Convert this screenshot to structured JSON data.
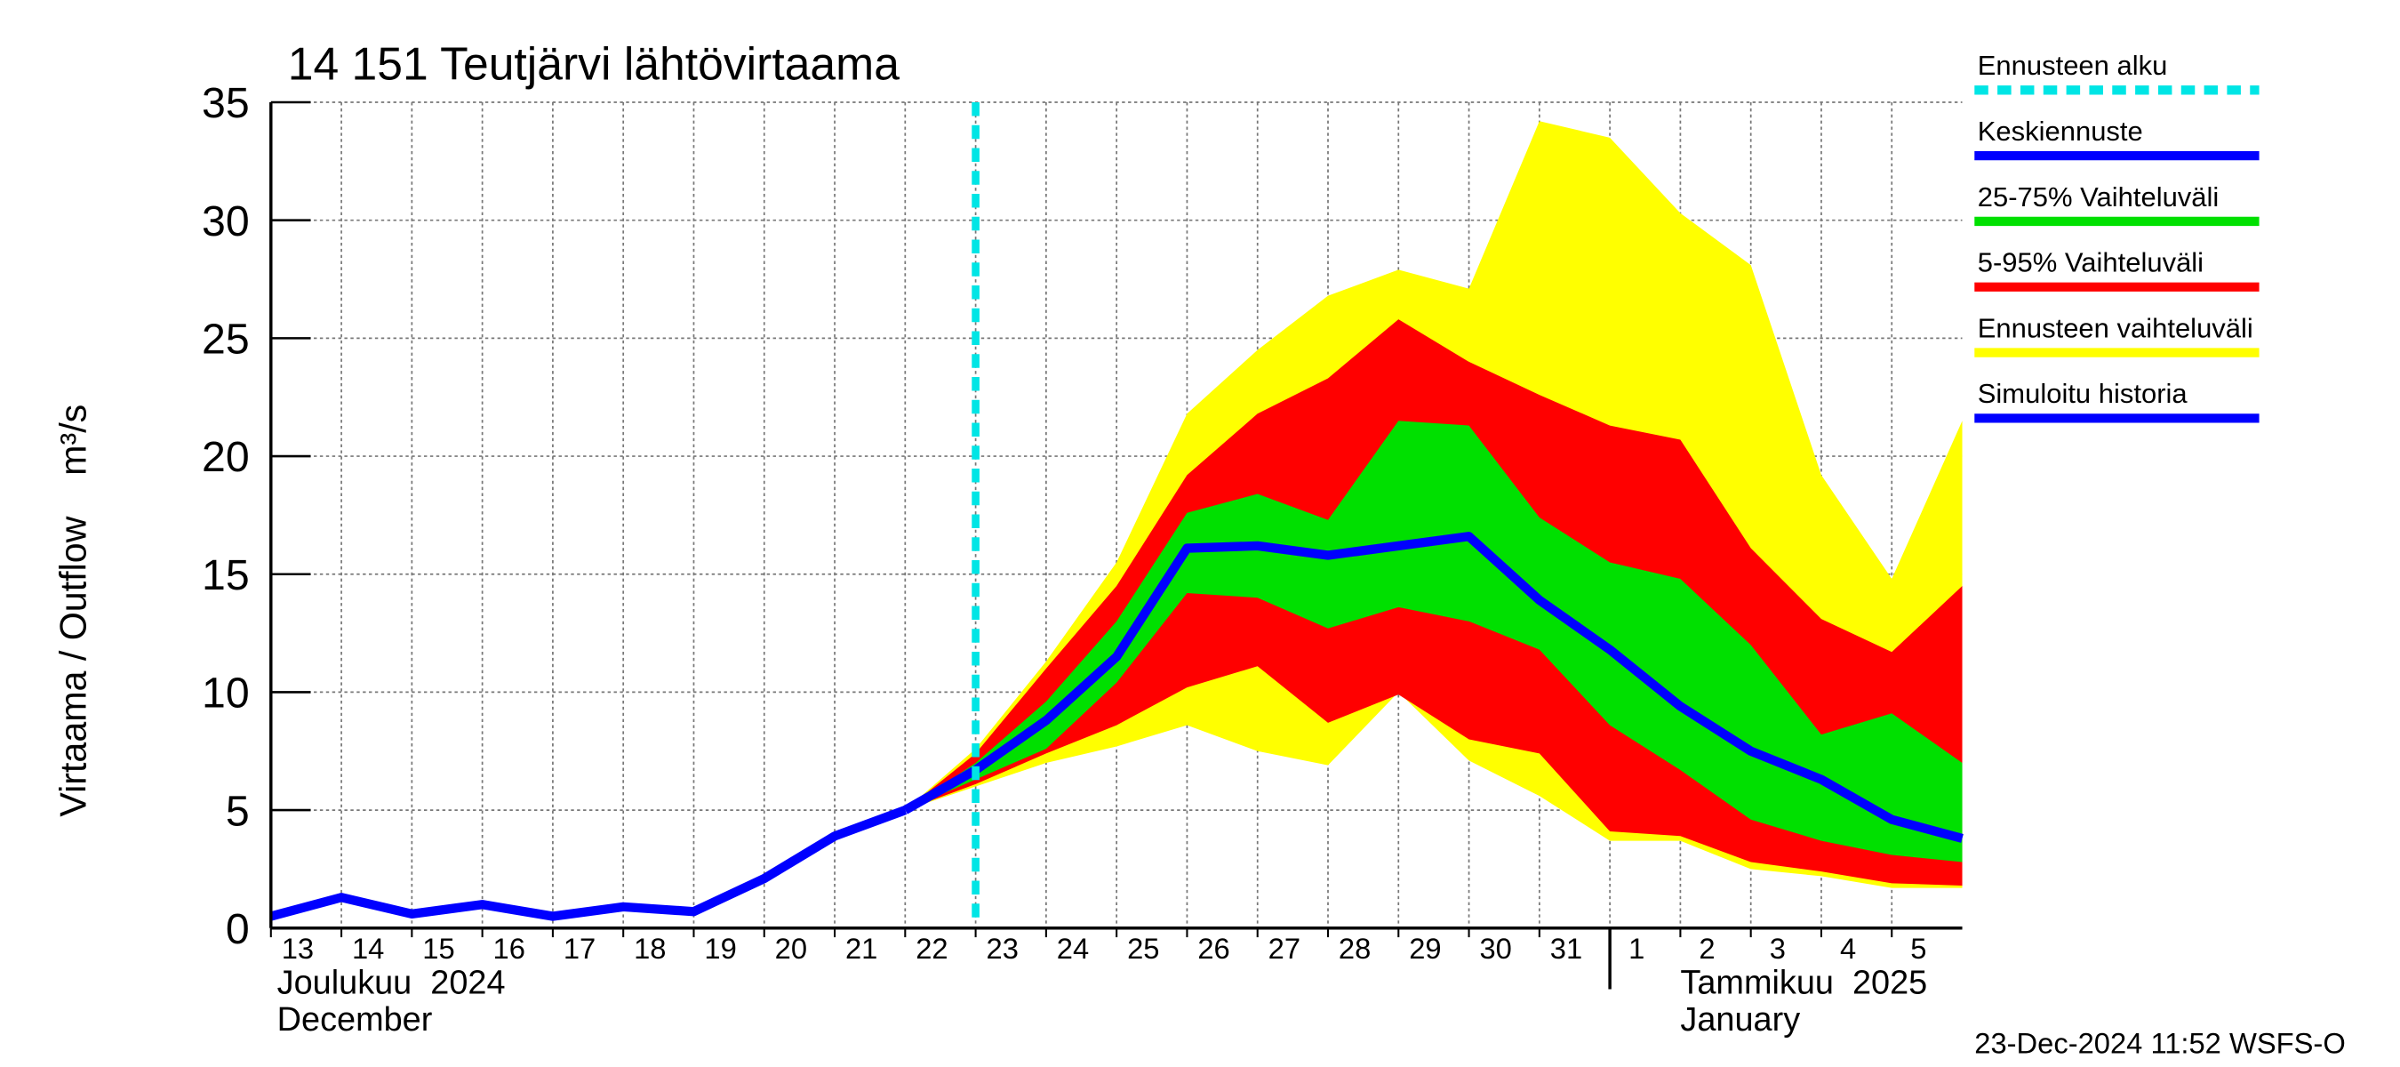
{
  "chart_data": {
    "type": "band-forecast",
    "title": "14 151 Teutjärvi lähtövirtaama",
    "y_label": "Virtaama / Outflow    m³/s",
    "x": [
      "2024-12-13",
      "2024-12-14",
      "2024-12-15",
      "2024-12-16",
      "2024-12-17",
      "2024-12-18",
      "2024-12-19",
      "2024-12-20",
      "2024-12-21",
      "2024-12-22",
      "2024-12-23",
      "2024-12-24",
      "2024-12-25",
      "2024-12-26",
      "2024-12-27",
      "2024-12-28",
      "2024-12-29",
      "2024-12-30",
      "2024-12-31",
      "2025-01-01",
      "2025-01-02",
      "2025-01-03",
      "2025-01-04",
      "2025-01-05",
      "2025-01-06"
    ],
    "xlim": [
      "2024-12-13",
      "2025-01-06"
    ],
    "xticks": [
      {
        "value": "2024-12-13",
        "label": "13"
      },
      {
        "value": "2024-12-14",
        "label": "14"
      },
      {
        "value": "2024-12-15",
        "label": "15"
      },
      {
        "value": "2024-12-16",
        "label": "16"
      },
      {
        "value": "2024-12-17",
        "label": "17"
      },
      {
        "value": "2024-12-18",
        "label": "18"
      },
      {
        "value": "2024-12-19",
        "label": "19"
      },
      {
        "value": "2024-12-20",
        "label": "20"
      },
      {
        "value": "2024-12-21",
        "label": "21"
      },
      {
        "value": "2024-12-22",
        "label": "22"
      },
      {
        "value": "2024-12-23",
        "label": "23"
      },
      {
        "value": "2024-12-24",
        "label": "24"
      },
      {
        "value": "2024-12-25",
        "label": "25"
      },
      {
        "value": "2024-12-26",
        "label": "26"
      },
      {
        "value": "2024-12-27",
        "label": "27"
      },
      {
        "value": "2024-12-28",
        "label": "28"
      },
      {
        "value": "2024-12-29",
        "label": "29"
      },
      {
        "value": "2024-12-30",
        "label": "30"
      },
      {
        "value": "2024-12-31",
        "label": "31"
      },
      {
        "value": "2025-01-01",
        "label": "1"
      },
      {
        "value": "2025-01-02",
        "label": "2"
      },
      {
        "value": "2025-01-03",
        "label": "3"
      },
      {
        "value": "2025-01-04",
        "label": "4"
      },
      {
        "value": "2025-01-05",
        "label": "5"
      }
    ],
    "month_labels": [
      {
        "value": "2024-12-13",
        "lines": [
          "Joulukuu  2024",
          "December"
        ]
      },
      {
        "value": "2025-01-01",
        "lines": [
          "Tammikuu  2025",
          "January"
        ]
      }
    ],
    "ylim": [
      0,
      35
    ],
    "yticks": [
      0,
      5,
      10,
      15,
      20,
      25,
      30,
      35
    ],
    "grid": true,
    "forecast_start": {
      "label": "Ennusteen alku",
      "x": "2024-12-23",
      "color": "#00e5e5"
    },
    "series": [
      {
        "name": "Keskiennuste",
        "color": "#0000ff",
        "values": [
          null,
          null,
          null,
          null,
          null,
          null,
          null,
          null,
          null,
          5.0,
          6.7,
          8.8,
          11.5,
          16.1,
          16.2,
          15.8,
          16.2,
          16.6,
          13.9,
          11.8,
          9.4,
          7.5,
          6.3,
          4.6,
          3.8
        ]
      },
      {
        "name": "Simuloitu historia",
        "color": "#0000ff",
        "values": [
          0.5,
          1.3,
          0.6,
          1.0,
          0.5,
          0.9,
          0.7,
          2.1,
          3.9,
          5.0,
          null,
          null,
          null,
          null,
          null,
          null,
          null,
          null,
          null,
          null,
          null,
          null,
          null,
          null,
          null
        ]
      }
    ],
    "bands": [
      {
        "name": "Ennusteen vaihteluväli",
        "color": "#ffff00",
        "lower": [
          null,
          null,
          null,
          null,
          null,
          null,
          null,
          null,
          null,
          5.0,
          6.0,
          7.0,
          7.7,
          8.6,
          7.5,
          6.9,
          10.0,
          7.1,
          5.6,
          3.7,
          3.7,
          2.5,
          2.2,
          1.7,
          1.7
        ],
        "upper": [
          null,
          null,
          null,
          null,
          null,
          null,
          null,
          null,
          null,
          5.0,
          7.6,
          11.3,
          15.5,
          21.8,
          24.5,
          26.8,
          27.9,
          27.1,
          34.2,
          33.5,
          30.3,
          28.1,
          19.2,
          14.8,
          21.5
        ]
      },
      {
        "name": "5-95% Vaihteluväli",
        "color": "#ff0000",
        "lower": [
          null,
          null,
          null,
          null,
          null,
          null,
          null,
          null,
          null,
          5.0,
          6.1,
          7.4,
          8.6,
          10.2,
          11.1,
          8.7,
          9.9,
          8.0,
          7.4,
          4.1,
          3.9,
          2.8,
          2.4,
          1.9,
          1.8
        ],
        "upper": [
          null,
          null,
          null,
          null,
          null,
          null,
          null,
          null,
          null,
          5.0,
          7.4,
          11.0,
          14.5,
          19.2,
          21.8,
          23.3,
          25.8,
          24.0,
          22.6,
          21.3,
          20.7,
          16.1,
          13.1,
          11.7,
          14.5
        ]
      },
      {
        "name": "25-75% Vaihteluväli",
        "color": "#00e000",
        "lower": [
          null,
          null,
          null,
          null,
          null,
          null,
          null,
          null,
          null,
          5.0,
          6.3,
          7.6,
          10.4,
          14.2,
          14.0,
          12.7,
          13.6,
          13.0,
          11.8,
          8.6,
          6.7,
          4.6,
          3.7,
          3.1,
          2.8
        ],
        "upper": [
          null,
          null,
          null,
          null,
          null,
          null,
          null,
          null,
          null,
          5.0,
          7.0,
          9.6,
          13.0,
          17.6,
          18.4,
          17.3,
          21.5,
          21.3,
          17.4,
          15.5,
          14.8,
          12.0,
          8.2,
          9.1,
          7.0
        ]
      }
    ],
    "footer": "23-Dec-2024 11:52 WSFS-O"
  }
}
